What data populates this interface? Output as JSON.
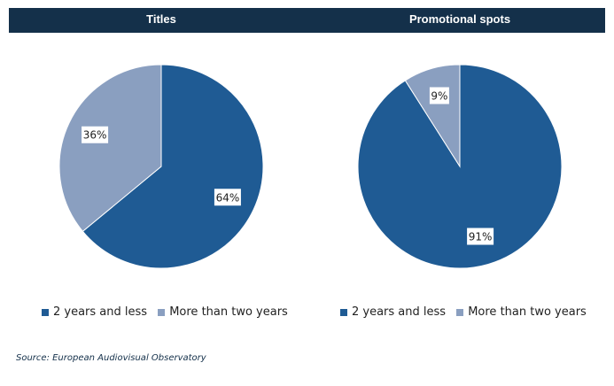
{
  "chart_data": [
    {
      "type": "pie",
      "title": "Titles",
      "categories": [
        "2 years and less",
        "More than two years"
      ],
      "values": [
        64,
        36
      ],
      "labels": [
        "64%",
        "36%"
      ]
    },
    {
      "type": "pie",
      "title": "Promotional spots",
      "categories": [
        "2 years and less",
        "More than two years"
      ],
      "values": [
        91,
        9
      ],
      "labels": [
        "91%",
        "9%"
      ]
    }
  ],
  "colors": [
    "#1f5b94",
    "#8a9fc0"
  ],
  "legend": [
    "2 years and less",
    "More than two years"
  ],
  "source": "Source: European Audiovisual Observatory"
}
